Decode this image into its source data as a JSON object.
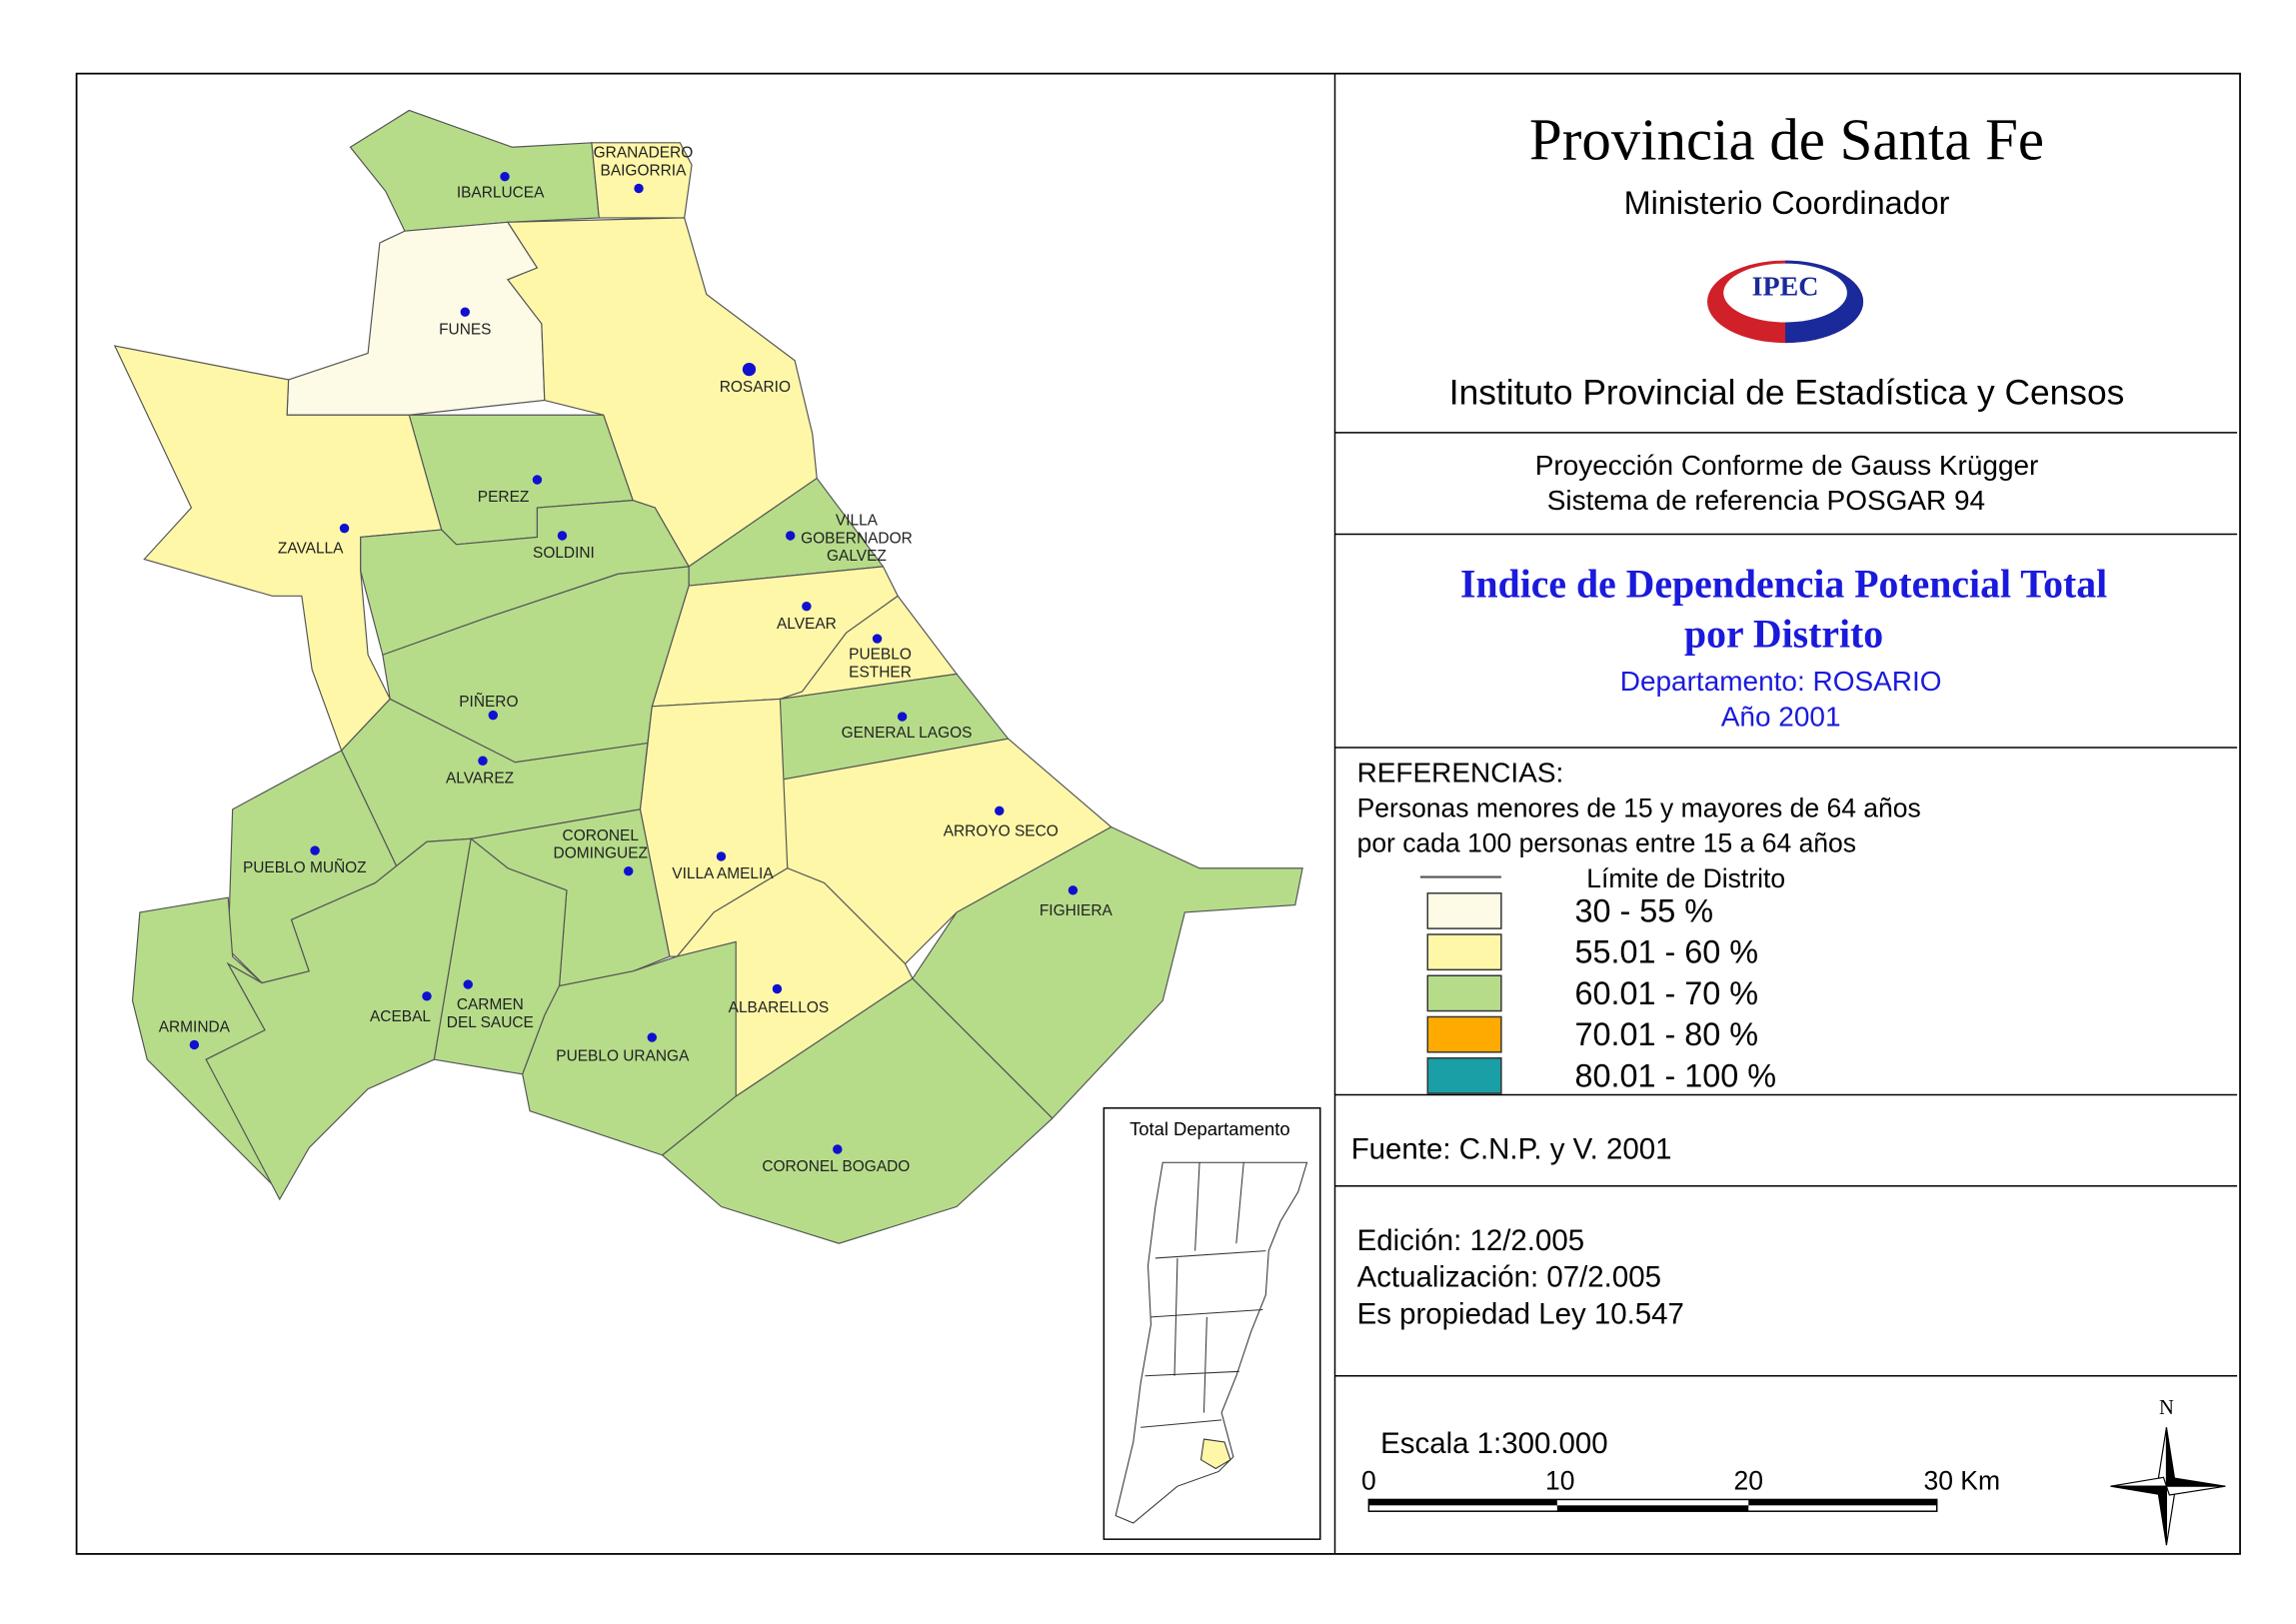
{
  "header": {
    "title": "Provincia de Santa Fe",
    "subtitle": "Ministerio Coordinador",
    "logo": "IPEC",
    "institute": "Instituto Provincial de Estadística y Censos"
  },
  "projection": [
    "Proyección Conforme de Gauss Krügger",
    "Sistema de referencia POSGAR 94"
  ],
  "map_title": {
    "lines": [
      "Indice de Dependencia Potencial Total",
      "por Distrito"
    ],
    "department": "Departamento:  ROSARIO",
    "year": "Año 2001"
  },
  "legend": {
    "heading": "REFERENCIAS:",
    "description": [
      "Personas menores de 15 y mayores de 64 años",
      "por cada 100 personas entre 15 a 64 años"
    ],
    "boundary": "Límite de Distrito",
    "items": [
      {
        "label": "30 - 55 %",
        "color": "#fdfbe6"
      },
      {
        "label": "55.01 - 60 %",
        "color": "#fff7a8"
      },
      {
        "label": "60.01 - 70 %",
        "color": "#b6dc8a"
      },
      {
        "label": "70.01 - 80 %",
        "color": "#ffaa00"
      },
      {
        "label": "80.01 - 100 %",
        "color": "#1a9fa6"
      }
    ]
  },
  "districts": [
    {
      "label": [
        "IBARLUCEA"
      ],
      "fill": "#b6dc8a"
    },
    {
      "label": [
        "GRANADERO",
        "BAIGORRIA"
      ],
      "fill": "#fff7a8"
    },
    {
      "label": [
        "FUNES"
      ],
      "fill": "#fdfbe6"
    },
    {
      "label": [
        "ROSARIO"
      ],
      "fill": "#fff7a8"
    },
    {
      "label": [
        "ZAVALLA"
      ],
      "fill": "#fff7a8"
    },
    {
      "label": [
        "PEREZ"
      ],
      "fill": "#b6dc8a"
    },
    {
      "label": [
        "SOLDINI"
      ],
      "fill": "#b6dc8a"
    },
    {
      "label": [
        "VILLA",
        "GOBERNADOR",
        "GALVEZ"
      ],
      "fill": "#b6dc8a"
    },
    {
      "label": [
        "ALVEAR"
      ],
      "fill": "#fff7a8"
    },
    {
      "label": [
        "PUEBLO",
        "ESTHER"
      ],
      "fill": "#fff7a8"
    },
    {
      "label": [
        "PIÑERO"
      ],
      "fill": "#b6dc8a"
    },
    {
      "label": [
        "GENERAL LAGOS"
      ],
      "fill": "#b6dc8a"
    },
    {
      "label": [
        "ALVAREZ"
      ],
      "fill": "#b6dc8a"
    },
    {
      "label": [
        "ARROYO SECO"
      ],
      "fill": "#fff7a8"
    },
    {
      "label": [
        "PUEBLO MUÑOZ"
      ],
      "fill": "#b6dc8a"
    },
    {
      "label": [
        "CORONEL",
        "DOMINGUEZ"
      ],
      "fill": "#b6dc8a"
    },
    {
      "label": [
        "VILLA AMELIA"
      ],
      "fill": "#fff7a8"
    },
    {
      "label": [
        "FIGHIERA"
      ],
      "fill": "#b6dc8a"
    },
    {
      "label": [
        "ARMINDA"
      ],
      "fill": "#b6dc8a"
    },
    {
      "label": [
        "ACEBAL"
      ],
      "fill": "#b6dc8a"
    },
    {
      "label": [
        "CARMEN",
        "DEL SAUCE"
      ],
      "fill": "#b6dc8a"
    },
    {
      "label": [
        "ALBARELLOS"
      ],
      "fill": "#fff7a8"
    },
    {
      "label": [
        "PUEBLO URANGA"
      ],
      "fill": "#b6dc8a"
    },
    {
      "label": [
        "CORONEL BOGADO"
      ],
      "fill": "#b6dc8a"
    }
  ],
  "inset": {
    "title": "Total Departamento"
  },
  "source": "Fuente:  C.N.P. y V. 2001",
  "edition": [
    "Edición:  12/2.005",
    "Actualización:  07/2.005",
    "Es propiedad Ley 10.547"
  ],
  "scale": {
    "title": "Escala 1:300.000",
    "labels": [
      "0",
      "10",
      "20",
      "30 Km"
    ]
  },
  "north": "N"
}
